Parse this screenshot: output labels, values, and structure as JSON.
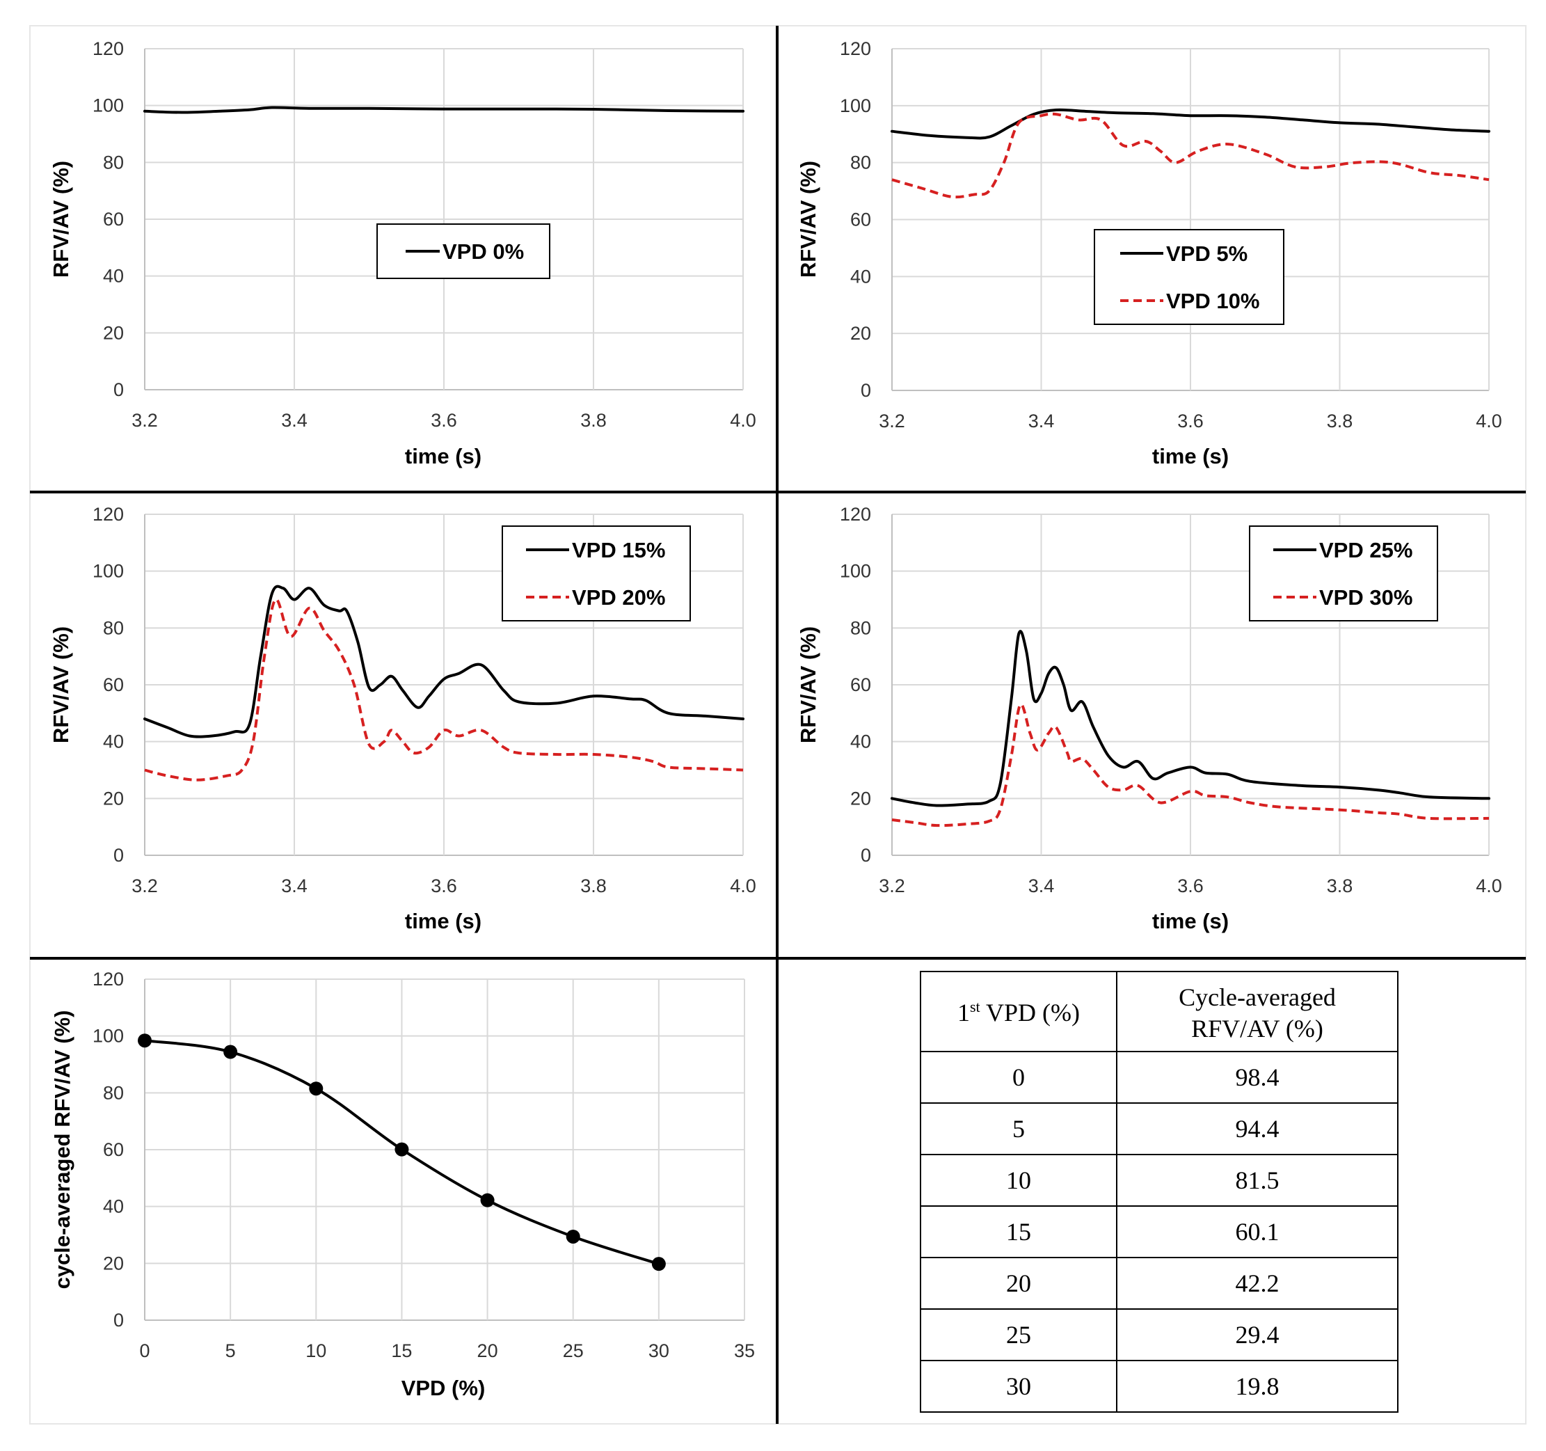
{
  "colors": {
    "black": "#000000",
    "red": "#d62020",
    "grid": "#d9d9d9"
  },
  "chart_data": [
    {
      "type": "line",
      "xlabel": "time (s)",
      "ylabel": "RFV/AV (%)",
      "xlim": [
        3.2,
        4.0
      ],
      "ylim": [
        0,
        120
      ],
      "xticks": [
        "3.2",
        "3.4",
        "3.6",
        "3.8",
        "4.0"
      ],
      "yticks": [
        "0",
        "20",
        "40",
        "60",
        "80",
        "100",
        "120"
      ],
      "legend": "center",
      "series": [
        {
          "name": "VPD 0%",
          "color": "#000000",
          "dash": false,
          "points": [
            [
              3.2,
              98
            ],
            [
              3.25,
              97.6
            ],
            [
              3.3,
              98
            ],
            [
              3.34,
              98.5
            ],
            [
              3.37,
              99.3
            ],
            [
              3.42,
              99
            ],
            [
              3.5,
              99
            ],
            [
              3.6,
              98.8
            ],
            [
              3.7,
              98.8
            ],
            [
              3.8,
              98.7
            ],
            [
              3.9,
              98.2
            ],
            [
              4.0,
              98
            ]
          ]
        }
      ]
    },
    {
      "type": "line",
      "xlabel": "time (s)",
      "ylabel": "RFV/AV (%)",
      "xlim": [
        3.2,
        4.0
      ],
      "ylim": [
        0,
        120
      ],
      "xticks": [
        "3.2",
        "3.4",
        "3.6",
        "3.8",
        "4.0"
      ],
      "yticks": [
        "0",
        "20",
        "40",
        "60",
        "80",
        "100",
        "120"
      ],
      "legend": "center",
      "series": [
        {
          "name": "VPD 5%",
          "color": "#000000",
          "dash": false,
          "points": [
            [
              3.2,
              91
            ],
            [
              3.25,
              89.5
            ],
            [
              3.3,
              88.8
            ],
            [
              3.33,
              89
            ],
            [
              3.36,
              93
            ],
            [
              3.39,
              97
            ],
            [
              3.42,
              98.5
            ],
            [
              3.46,
              98
            ],
            [
              3.5,
              97.5
            ],
            [
              3.55,
              97.2
            ],
            [
              3.6,
              96.5
            ],
            [
              3.65,
              96.5
            ],
            [
              3.7,
              96
            ],
            [
              3.75,
              95
            ],
            [
              3.8,
              94
            ],
            [
              3.85,
              93.5
            ],
            [
              3.9,
              92.5
            ],
            [
              3.95,
              91.5
            ],
            [
              4.0,
              91
            ]
          ]
        },
        {
          "name": "VPD 10%",
          "color": "#d62020",
          "dash": true,
          "points": [
            [
              3.2,
              74
            ],
            [
              3.24,
              71
            ],
            [
              3.28,
              68
            ],
            [
              3.31,
              68.8
            ],
            [
              3.33,
              70
            ],
            [
              3.35,
              80
            ],
            [
              3.37,
              94
            ],
            [
              3.4,
              96.5
            ],
            [
              3.42,
              97
            ],
            [
              3.45,
              95
            ],
            [
              3.48,
              95
            ],
            [
              3.51,
              86
            ],
            [
              3.54,
              87.5
            ],
            [
              3.56,
              84
            ],
            [
              3.58,
              80
            ],
            [
              3.61,
              84
            ],
            [
              3.65,
              86.5
            ],
            [
              3.7,
              83
            ],
            [
              3.74,
              78.5
            ],
            [
              3.78,
              78.5
            ],
            [
              3.82,
              80
            ],
            [
              3.87,
              80
            ],
            [
              3.92,
              76.5
            ],
            [
              3.96,
              75.5
            ],
            [
              4.0,
              74
            ]
          ]
        }
      ]
    },
    {
      "type": "line",
      "xlabel": "time (s)",
      "ylabel": "RFV/AV (%)",
      "xlim": [
        3.2,
        4.0
      ],
      "ylim": [
        0,
        120
      ],
      "xticks": [
        "3.2",
        "3.4",
        "3.6",
        "3.8",
        "4.0"
      ],
      "yticks": [
        "0",
        "20",
        "40",
        "60",
        "80",
        "100",
        "120"
      ],
      "legend": "top-right",
      "series": [
        {
          "name": "VPD 15%",
          "color": "#000000",
          "dash": false,
          "points": [
            [
              3.2,
              48
            ],
            [
              3.23,
              45
            ],
            [
              3.26,
              42
            ],
            [
              3.29,
              42
            ],
            [
              3.32,
              43.5
            ],
            [
              3.34,
              46
            ],
            [
              3.355,
              70
            ],
            [
              3.37,
              92
            ],
            [
              3.385,
              94
            ],
            [
              3.4,
              90
            ],
            [
              3.42,
              94
            ],
            [
              3.44,
              88
            ],
            [
              3.46,
              86
            ],
            [
              3.47,
              86
            ],
            [
              3.485,
              75
            ],
            [
              3.5,
              59
            ],
            [
              3.515,
              60
            ],
            [
              3.53,
              63
            ],
            [
              3.545,
              58
            ],
            [
              3.565,
              52
            ],
            [
              3.58,
              56
            ],
            [
              3.6,
              62
            ],
            [
              3.62,
              64
            ],
            [
              3.65,
              67
            ],
            [
              3.68,
              58
            ],
            [
              3.7,
              54
            ],
            [
              3.75,
              53.5
            ],
            [
              3.8,
              56
            ],
            [
              3.85,
              55
            ],
            [
              3.87,
              54.5
            ],
            [
              3.9,
              50
            ],
            [
              3.95,
              49
            ],
            [
              4.0,
              48
            ]
          ]
        },
        {
          "name": "VPD 20%",
          "color": "#d62020",
          "dash": true,
          "points": [
            [
              3.2,
              30
            ],
            [
              3.23,
              28
            ],
            [
              3.27,
              26.5
            ],
            [
              3.31,
              28
            ],
            [
              3.33,
              30
            ],
            [
              3.345,
              40
            ],
            [
              3.36,
              70
            ],
            [
              3.375,
              90
            ],
            [
              3.395,
              77
            ],
            [
              3.42,
              87
            ],
            [
              3.44,
              79
            ],
            [
              3.46,
              72
            ],
            [
              3.48,
              60
            ],
            [
              3.5,
              39
            ],
            [
              3.52,
              40
            ],
            [
              3.53,
              44
            ],
            [
              3.545,
              40
            ],
            [
              3.56,
              36
            ],
            [
              3.58,
              38
            ],
            [
              3.6,
              44
            ],
            [
              3.62,
              42
            ],
            [
              3.65,
              44
            ],
            [
              3.68,
              38
            ],
            [
              3.7,
              36
            ],
            [
              3.75,
              35.5
            ],
            [
              3.8,
              35.5
            ],
            [
              3.85,
              34.5
            ],
            [
              3.88,
              33
            ],
            [
              3.9,
              31
            ],
            [
              3.95,
              30.5
            ],
            [
              4.0,
              30
            ]
          ]
        }
      ]
    },
    {
      "type": "line",
      "xlabel": "time (s)",
      "ylabel": "RFV/AV (%)",
      "xlim": [
        3.2,
        4.0
      ],
      "ylim": [
        0,
        120
      ],
      "xticks": [
        "3.2",
        "3.4",
        "3.6",
        "3.8",
        "4.0"
      ],
      "yticks": [
        "0",
        "20",
        "40",
        "60",
        "80",
        "100",
        "120"
      ],
      "legend": "top-right",
      "series": [
        {
          "name": "VPD 25%",
          "color": "#000000",
          "dash": false,
          "points": [
            [
              3.2,
              20
            ],
            [
              3.23,
              18.5
            ],
            [
              3.26,
              17.5
            ],
            [
              3.3,
              18
            ],
            [
              3.33,
              19
            ],
            [
              3.345,
              25
            ],
            [
              3.36,
              55
            ],
            [
              3.37,
              78
            ],
            [
              3.38,
              72
            ],
            [
              3.39,
              55
            ],
            [
              3.4,
              57
            ],
            [
              3.41,
              64
            ],
            [
              3.42,
              66
            ],
            [
              3.43,
              60
            ],
            [
              3.44,
              51
            ],
            [
              3.455,
              54
            ],
            [
              3.47,
              45
            ],
            [
              3.49,
              35
            ],
            [
              3.51,
              31
            ],
            [
              3.53,
              33
            ],
            [
              3.55,
              27
            ],
            [
              3.57,
              29
            ],
            [
              3.6,
              31
            ],
            [
              3.62,
              29
            ],
            [
              3.65,
              28.5
            ],
            [
              3.68,
              26
            ],
            [
              3.75,
              24.5
            ],
            [
              3.8,
              24
            ],
            [
              3.85,
              23
            ],
            [
              3.88,
              22
            ],
            [
              3.92,
              20.5
            ],
            [
              4.0,
              20
            ]
          ]
        },
        {
          "name": "VPD 30%",
          "color": "#d62020",
          "dash": true,
          "points": [
            [
              3.2,
              12.5
            ],
            [
              3.23,
              11.5
            ],
            [
              3.26,
              10.5
            ],
            [
              3.3,
              11
            ],
            [
              3.33,
              12
            ],
            [
              3.345,
              16
            ],
            [
              3.36,
              35
            ],
            [
              3.372,
              53
            ],
            [
              3.385,
              43
            ],
            [
              3.395,
              37
            ],
            [
              3.41,
              43
            ],
            [
              3.42,
              45
            ],
            [
              3.435,
              36
            ],
            [
              3.44,
              33
            ],
            [
              3.455,
              34
            ],
            [
              3.47,
              30
            ],
            [
              3.49,
              24
            ],
            [
              3.51,
              23
            ],
            [
              3.53,
              24.5
            ],
            [
              3.56,
              18.5
            ],
            [
              3.6,
              22.5
            ],
            [
              3.62,
              21
            ],
            [
              3.65,
              20.5
            ],
            [
              3.68,
              18.5
            ],
            [
              3.72,
              17
            ],
            [
              3.8,
              16
            ],
            [
              3.85,
              15
            ],
            [
              3.88,
              14.5
            ],
            [
              3.92,
              13
            ],
            [
              4.0,
              13
            ]
          ]
        }
      ]
    },
    {
      "type": "line",
      "xlabel": "VPD (%)",
      "ylabel": "cycle-averaged RFV/AV (%)",
      "xlim": [
        0,
        35
      ],
      "ylim": [
        0,
        120
      ],
      "xticks": [
        "0",
        "5",
        "10",
        "15",
        "20",
        "25",
        "30",
        "35"
      ],
      "yticks": [
        "0",
        "20",
        "40",
        "60",
        "80",
        "100",
        "120"
      ],
      "series": [
        {
          "name": "cycle-averaged RFV/AV",
          "color": "#000000",
          "dash": false,
          "markers": true,
          "points": [
            [
              0,
              98.4
            ],
            [
              5,
              94.4
            ],
            [
              10,
              81.5
            ],
            [
              15,
              60.1
            ],
            [
              20,
              42.2
            ],
            [
              25,
              29.4
            ],
            [
              30,
              19.8
            ]
          ]
        }
      ]
    }
  ],
  "table": {
    "headers": {
      "col1_base": "1",
      "col1_sup": "st",
      "col1_rest": " VPD (%)",
      "col2_line1": "Cycle-averaged",
      "col2_line2": "RFV/AV (%)"
    },
    "rows": [
      [
        "0",
        "98.4"
      ],
      [
        "5",
        "94.4"
      ],
      [
        "10",
        "81.5"
      ],
      [
        "15",
        "60.1"
      ],
      [
        "20",
        "42.2"
      ],
      [
        "25",
        "29.4"
      ],
      [
        "30",
        "19.8"
      ]
    ]
  }
}
